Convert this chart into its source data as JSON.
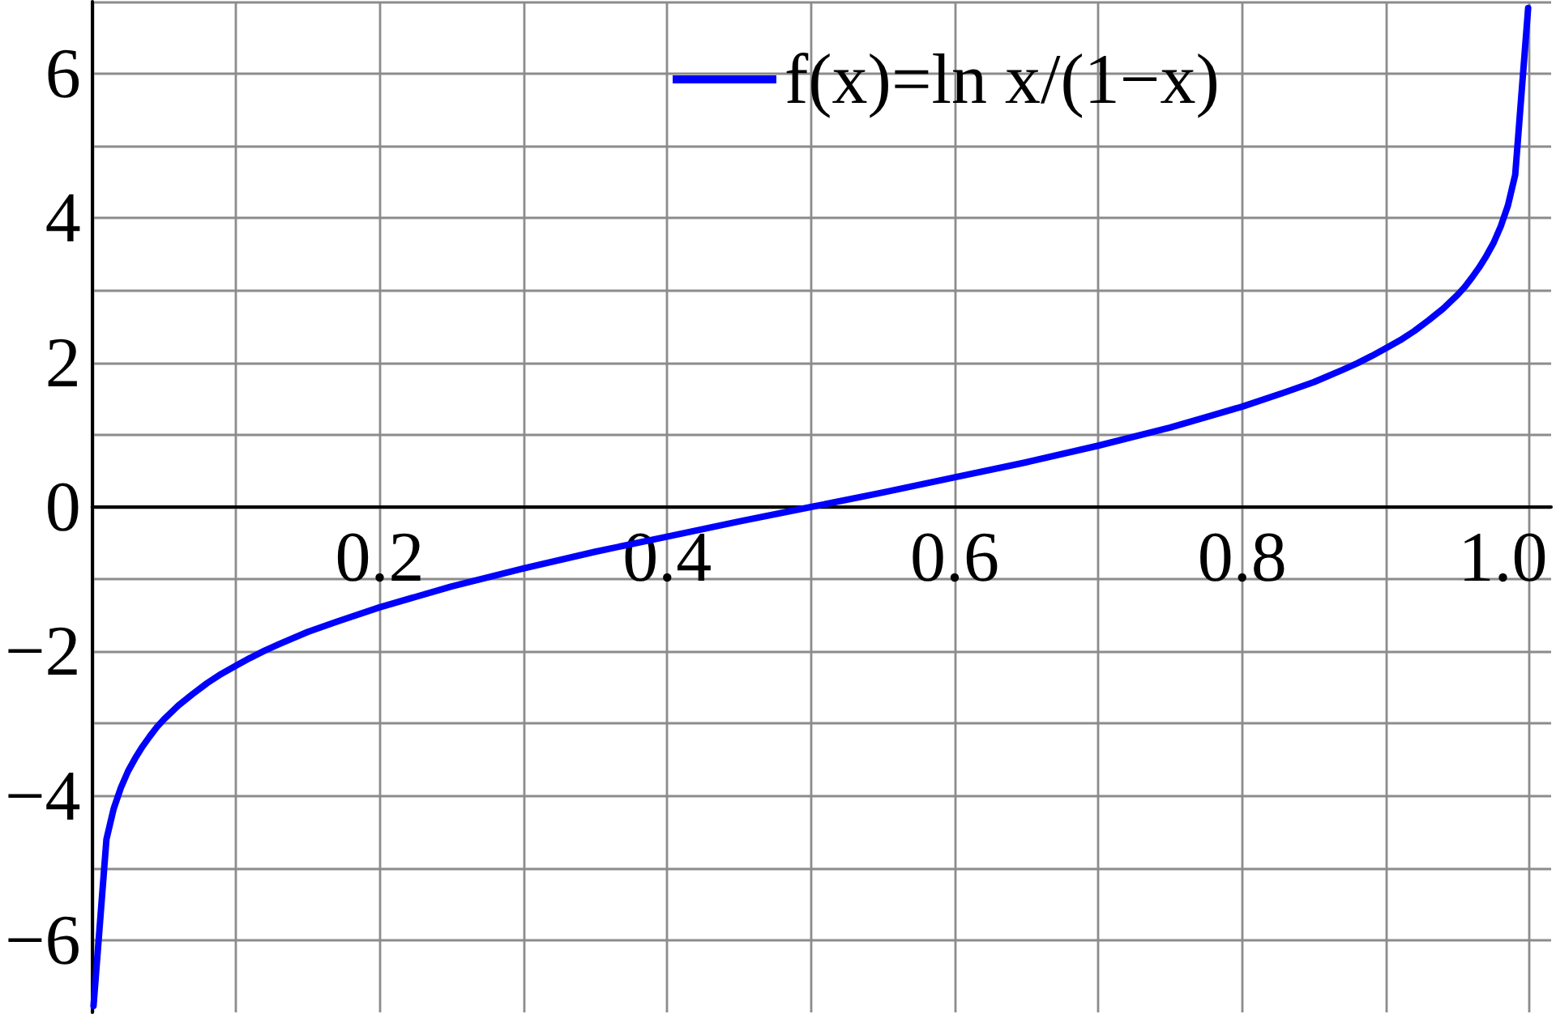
{
  "chart_data": {
    "type": "line",
    "x": [
      0.001,
      0.01,
      0.015,
      0.02,
      0.025,
      0.03,
      0.035,
      0.04,
      0.045,
      0.05,
      0.06,
      0.07,
      0.08,
      0.09,
      0.1,
      0.11,
      0.12,
      0.13,
      0.15,
      0.17,
      0.2,
      0.25,
      0.3,
      0.35,
      0.4,
      0.45,
      0.5,
      0.55,
      0.6,
      0.65,
      0.7,
      0.75,
      0.8,
      0.83,
      0.85,
      0.87,
      0.88,
      0.89,
      0.9,
      0.91,
      0.92,
      0.93,
      0.94,
      0.95,
      0.955,
      0.96,
      0.965,
      0.97,
      0.975,
      0.98,
      0.985,
      0.99,
      0.999
    ],
    "series": [
      {
        "name": "f(x)=ln x/(1−x)",
        "color": "#0000ff",
        "values": [
          -6.91,
          -4.6,
          -4.18,
          -3.89,
          -3.66,
          -3.48,
          -3.32,
          -3.18,
          -3.05,
          -2.94,
          -2.75,
          -2.59,
          -2.44,
          -2.31,
          -2.2,
          -2.09,
          -1.99,
          -1.9,
          -1.73,
          -1.59,
          -1.39,
          -1.1,
          -0.85,
          -0.62,
          -0.41,
          -0.2,
          0,
          0.2,
          0.41,
          0.62,
          0.85,
          1.1,
          1.39,
          1.59,
          1.73,
          1.9,
          1.99,
          2.09,
          2.2,
          2.31,
          2.44,
          2.59,
          2.75,
          2.94,
          3.05,
          3.18,
          3.32,
          3.48,
          3.66,
          3.89,
          4.18,
          4.6,
          6.91
        ]
      }
    ],
    "xlim": [
      0,
      1.015
    ],
    "ylim": [
      -7,
      7
    ],
    "xticks": [
      {
        "value": 0,
        "label": null
      },
      {
        "value": 0.1,
        "label": null
      },
      0.2,
      {
        "value": 0.3,
        "label": null
      },
      0.4,
      {
        "value": 0.5,
        "label": null
      },
      0.6,
      {
        "value": 0.7,
        "label": null
      },
      0.8,
      {
        "value": 0.9,
        "label": null
      },
      {
        "value": 1,
        "label": "1.0"
      }
    ],
    "yticks": [
      {
        "value": -6,
        "label": "−6"
      },
      {
        "value": -5,
        "label": null
      },
      {
        "value": -4,
        "label": "−4"
      },
      {
        "value": -3,
        "label": null
      },
      {
        "value": -2,
        "label": "−2"
      },
      {
        "value": -1,
        "label": null
      },
      0,
      {
        "value": 1,
        "label": null
      },
      2,
      {
        "value": 3,
        "label": null
      },
      4,
      {
        "value": 5,
        "label": null
      },
      6,
      {
        "value": 7,
        "label": null
      }
    ],
    "grid": true,
    "legend": "top",
    "marker": "none",
    "line_style": "solid"
  }
}
